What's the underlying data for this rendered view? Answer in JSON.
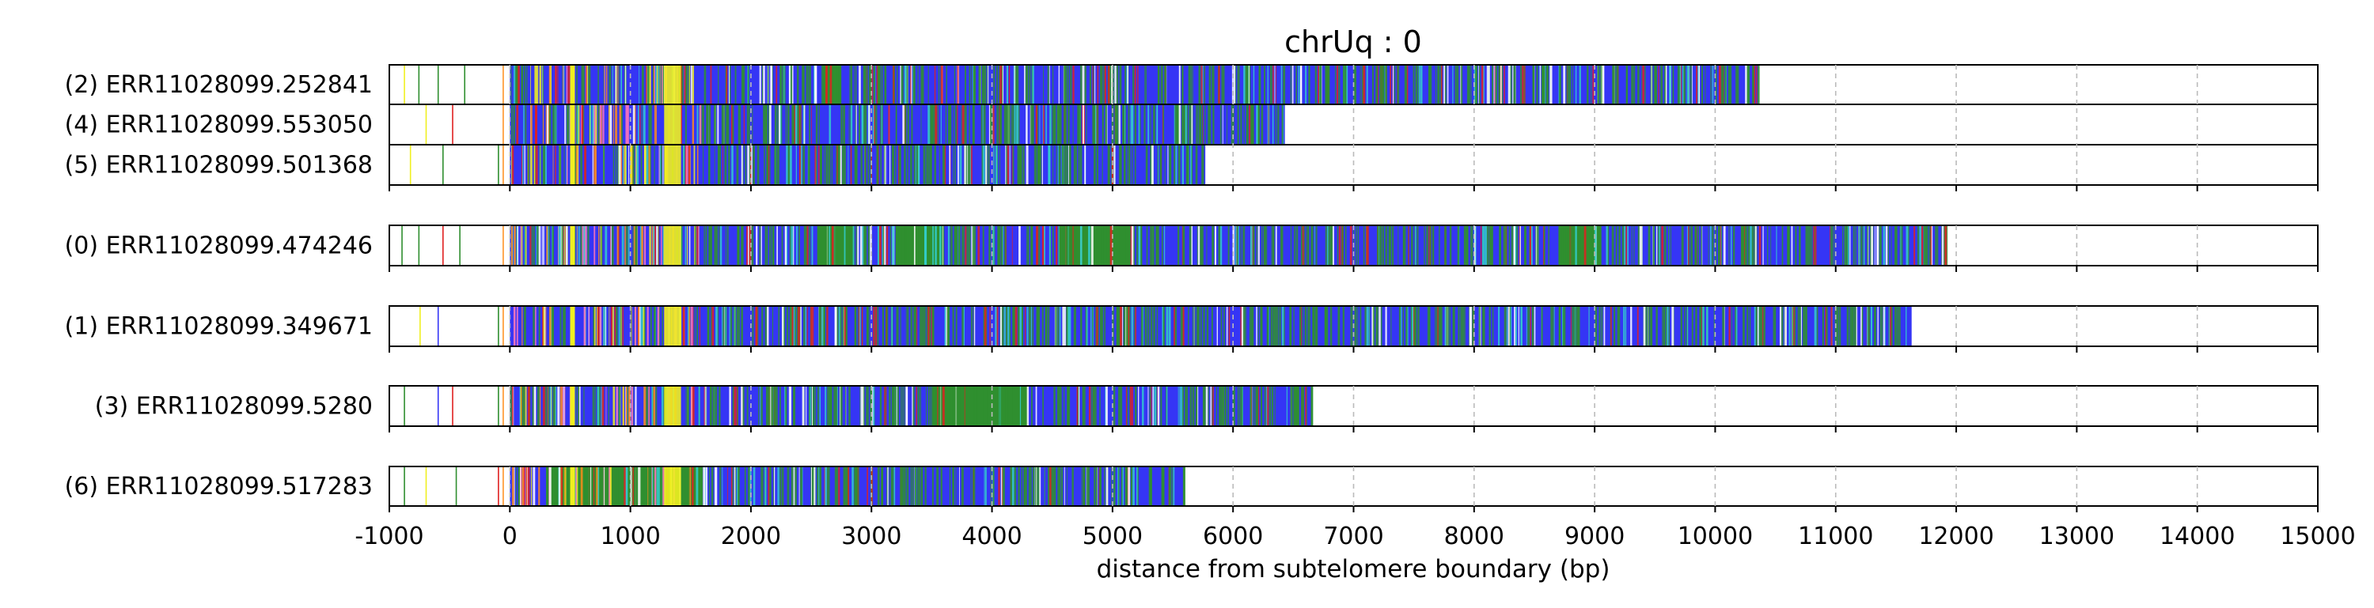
{
  "chart_data": {
    "type": "track",
    "title": "chrUq : 0",
    "xlabel": "distance from subtelomere boundary (bp)",
    "xlim": [
      -1000,
      15000
    ],
    "xticks": [
      -1000,
      0,
      1000,
      2000,
      3000,
      4000,
      5000,
      6000,
      7000,
      8000,
      9000,
      10000,
      11000,
      12000,
      13000,
      14000,
      15000
    ],
    "grid": "vertical dashed",
    "colors": {
      "blue": "#3535f5",
      "green": "#2f8f2f",
      "yellow": "#f0f020",
      "red": "#e02020",
      "orange": "#ff8c1a",
      "cyan": "#33cccc",
      "pink": "#ff77bb",
      "grid": "#bbbbbb"
    },
    "groups": [
      {
        "reads": [
          {
            "label": "(2) ERR11028099.252841",
            "end": 10360,
            "segments": [
              {
                "start": 0,
                "end": 10360,
                "color": "blue"
              },
              {
                "start": 2600,
                "end": 2750,
                "color": "green"
              },
              {
                "start": 9050,
                "end": 9080,
                "color": "white"
              }
            ],
            "specks": [
              {
                "x": -880,
                "color": "yellow"
              },
              {
                "x": -760,
                "color": "green"
              },
              {
                "x": -600,
                "color": "green"
              },
              {
                "x": -380,
                "color": "green"
              }
            ]
          },
          {
            "label": "(4) ERR11028099.553050",
            "end": 6430,
            "segments": [
              {
                "start": 0,
                "end": 6430,
                "color": "blue"
              }
            ],
            "specks": [
              {
                "x": -700,
                "color": "yellow"
              },
              {
                "x": -480,
                "color": "red"
              }
            ]
          },
          {
            "label": "(5) ERR11028099.501368",
            "end": 5770,
            "segments": [
              {
                "start": 0,
                "end": 5770,
                "color": "blue"
              }
            ],
            "specks": [
              {
                "x": -830,
                "color": "yellow"
              },
              {
                "x": -560,
                "color": "green"
              },
              {
                "x": -100,
                "color": "green"
              }
            ]
          }
        ]
      },
      {
        "reads": [
          {
            "label": "(0) ERR11028099.474246",
            "end": 11920,
            "segments": [
              {
                "start": 0,
                "end": 11920,
                "color": "blue"
              },
              {
                "start": 2550,
                "end": 2850,
                "color": "green"
              },
              {
                "start": 3200,
                "end": 3600,
                "color": "green"
              },
              {
                "start": 4550,
                "end": 5150,
                "color": "green"
              },
              {
                "start": 8700,
                "end": 9050,
                "color": "green"
              }
            ],
            "specks": [
              {
                "x": -900,
                "color": "green"
              },
              {
                "x": -760,
                "color": "green"
              },
              {
                "x": -560,
                "color": "red"
              },
              {
                "x": -420,
                "color": "green"
              }
            ]
          },
          {
            "label": "(1) ERR11028099.349671",
            "end": 11630,
            "segments": [
              {
                "start": 0,
                "end": 11630,
                "color": "blue"
              }
            ],
            "specks": [
              {
                "x": -750,
                "color": "yellow"
              },
              {
                "x": -600,
                "color": "blue"
              },
              {
                "x": -100,
                "color": "green"
              }
            ]
          }
        ]
      },
      {
        "reads": [
          {
            "label": "(3) ERR11028099.5280",
            "end": 6650,
            "segments": [
              {
                "start": 0,
                "end": 6650,
                "color": "blue"
              },
              {
                "start": 3500,
                "end": 4300,
                "color": "green"
              }
            ],
            "specks": [
              {
                "x": -880,
                "color": "green"
              },
              {
                "x": -600,
                "color": "blue"
              },
              {
                "x": -480,
                "color": "red"
              },
              {
                "x": -100,
                "color": "green"
              }
            ]
          },
          {
            "label": "(6) ERR11028099.517283",
            "end": 5590,
            "segments": [
              {
                "start": 0,
                "end": 5590,
                "color": "blue"
              },
              {
                "start": 300,
                "end": 1600,
                "color": "green"
              }
            ],
            "specks": [
              {
                "x": -880,
                "color": "green"
              },
              {
                "x": -700,
                "color": "yellow"
              },
              {
                "x": -450,
                "color": "green"
              },
              {
                "x": -100,
                "color": "red"
              }
            ]
          }
        ]
      },
      {
        "reads": []
      },
      {
        "reads": []
      }
    ]
  }
}
